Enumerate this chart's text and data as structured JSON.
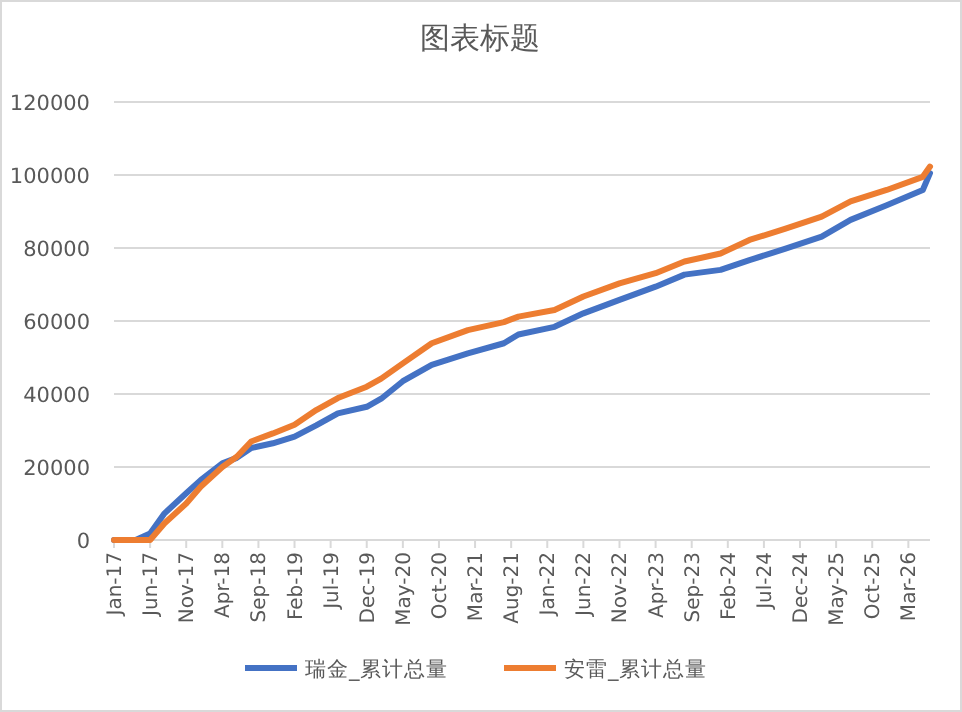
{
  "chart_data": {
    "type": "line",
    "title": "图表标题",
    "xlim": [
      "2017-01",
      "2026-06"
    ],
    "xticks": [
      {
        "value": "2017-01",
        "label": "Jan-17"
      },
      {
        "value": "2017-06",
        "label": "Jun-17"
      },
      {
        "value": "2017-11",
        "label": "Nov-17"
      },
      {
        "value": "2018-04",
        "label": "Apr-18"
      },
      {
        "value": "2018-09",
        "label": "Sep-18"
      },
      {
        "value": "2019-02",
        "label": "Feb-19"
      },
      {
        "value": "2019-07",
        "label": "Jul-19"
      },
      {
        "value": "2019-12",
        "label": "Dec-19"
      },
      {
        "value": "2020-05",
        "label": "May-20"
      },
      {
        "value": "2020-10",
        "label": "Oct-20"
      },
      {
        "value": "2021-03",
        "label": "Mar-21"
      },
      {
        "value": "2021-08",
        "label": "Aug-21"
      },
      {
        "value": "2022-01",
        "label": "Jan-22"
      },
      {
        "value": "2022-06",
        "label": "Jun-22"
      },
      {
        "value": "2022-11",
        "label": "Nov-22"
      },
      {
        "value": "2023-04",
        "label": "Apr-23"
      },
      {
        "value": "2023-09",
        "label": "Sep-23"
      },
      {
        "value": "2024-02",
        "label": "Feb-24"
      },
      {
        "value": "2024-07",
        "label": "Jul-24"
      },
      {
        "value": "2024-12",
        "label": "Dec-24"
      },
      {
        "value": "2025-05",
        "label": "May-25"
      },
      {
        "value": "2025-10",
        "label": "Oct-25"
      },
      {
        "value": "2026-03",
        "label": "Mar-26"
      }
    ],
    "ylim": [
      0,
      120000
    ],
    "yticks": [
      0,
      20000,
      40000,
      60000,
      80000,
      100000,
      120000
    ],
    "grid": "y",
    "legend": "bottom",
    "x": [
      "2017-01",
      "2017-04",
      "2017-06",
      "2017-08",
      "2017-11",
      "2018-01",
      "2018-04",
      "2018-06",
      "2018-08",
      "2018-11",
      "2019-02",
      "2019-05",
      "2019-08",
      "2019-12",
      "2020-02",
      "2020-05",
      "2020-09",
      "2021-02",
      "2021-07",
      "2021-09",
      "2022-02",
      "2022-06",
      "2022-11",
      "2023-04",
      "2023-08",
      "2024-01",
      "2024-05",
      "2024-10",
      "2025-03",
      "2025-07",
      "2025-12",
      "2026-05",
      "2026-06"
    ],
    "series": [
      {
        "name": "瑞金_累计总量",
        "color": "#4472c4",
        "values": [
          0,
          0,
          1800,
          7300,
          12800,
          16400,
          21000,
          22500,
          25200,
          26500,
          28300,
          31400,
          34700,
          36500,
          38700,
          43500,
          48000,
          51100,
          53900,
          56300,
          58400,
          62100,
          65800,
          69400,
          72700,
          74000,
          76700,
          79800,
          83100,
          87700,
          91700,
          95900,
          100500
        ]
      },
      {
        "name": "安雷_累计总量",
        "color": "#ed7d31",
        "values": [
          0,
          0,
          0,
          4600,
          10000,
          14600,
          20000,
          22800,
          27000,
          29200,
          31600,
          35600,
          38900,
          42000,
          44200,
          48400,
          53900,
          57500,
          59700,
          61200,
          63000,
          66700,
          70300,
          73100,
          76300,
          78500,
          82200,
          85300,
          88600,
          92800,
          95900,
          99500,
          102300
        ]
      }
    ]
  }
}
